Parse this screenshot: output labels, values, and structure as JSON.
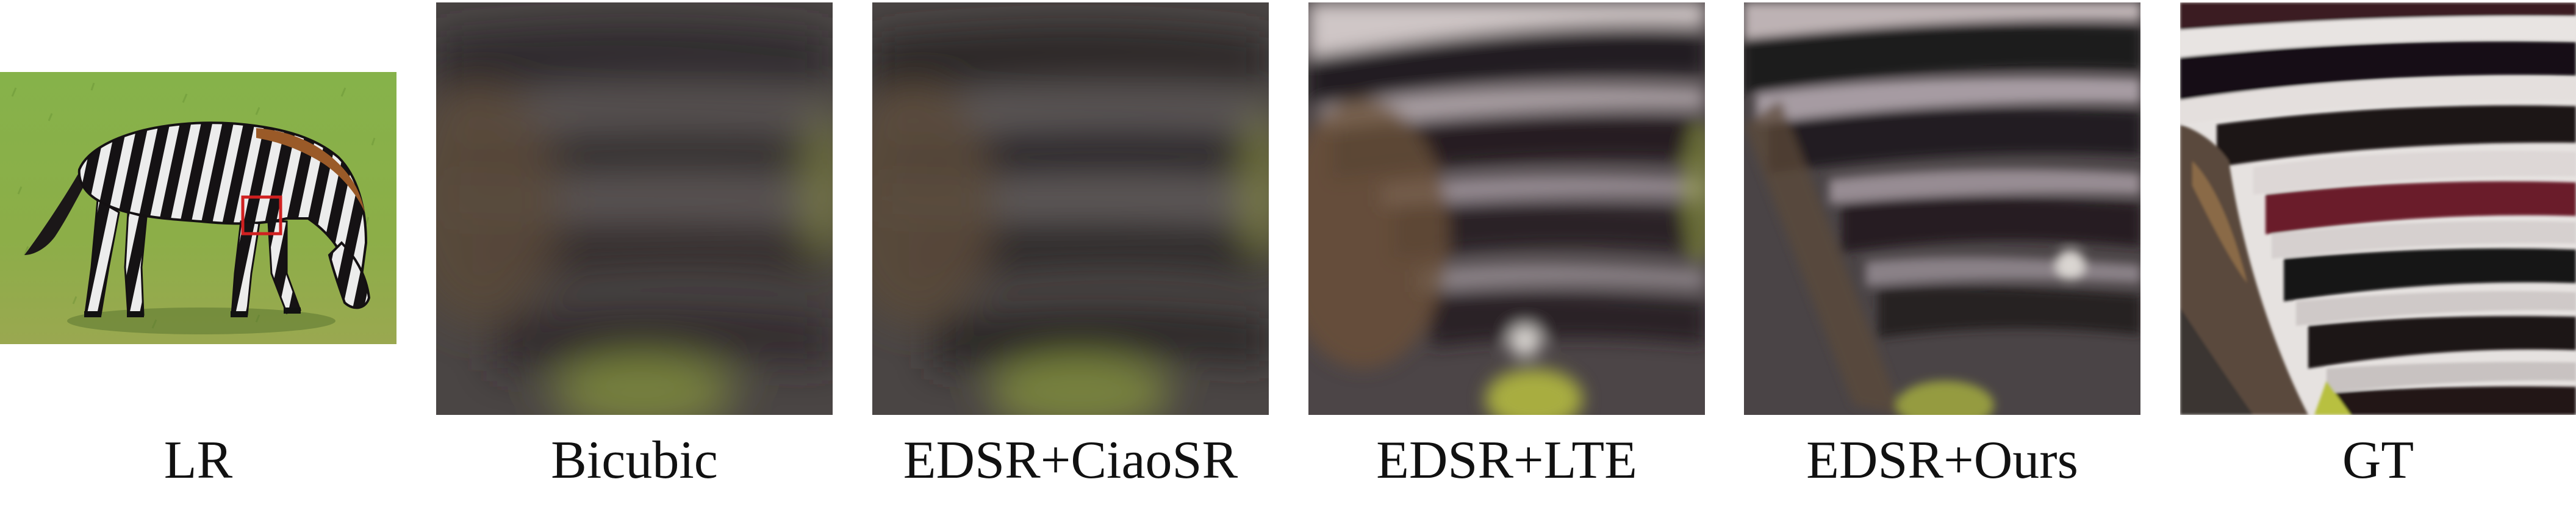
{
  "captions": {
    "lr": "LR",
    "bicubic": "Bicubic",
    "ciaosr": "EDSR+CiaoSR",
    "lte": "EDSR+LTE",
    "ours": "EDSR+Ours",
    "gt": "GT"
  },
  "colors": {
    "grass": "#8ab04a",
    "stripe_dark": "#1a1618",
    "stripe_light": "#d8d4d2",
    "zoom_box": "#d02020",
    "text": "#111111"
  }
}
